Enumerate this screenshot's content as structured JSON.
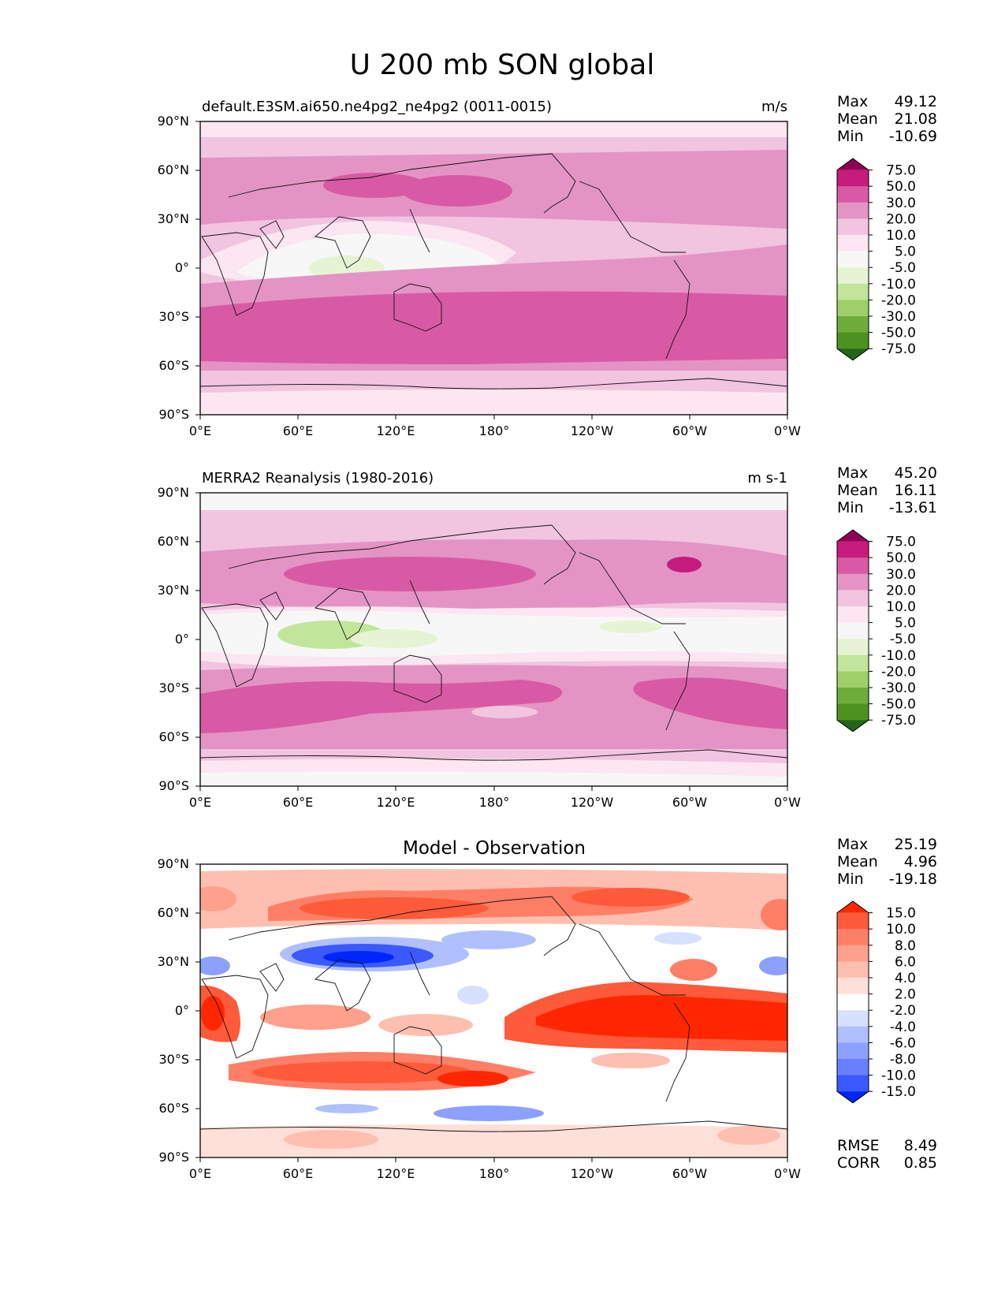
{
  "figure": {
    "title": "U 200 mb SON global"
  },
  "axes": {
    "xticks": [
      "0°E",
      "60°E",
      "120°E",
      "180°",
      "120°W",
      "60°W",
      "0°W"
    ],
    "yticks": [
      "90°N",
      "60°N",
      "30°N",
      "0°",
      "30°S",
      "60°S",
      "90°S"
    ]
  },
  "chart_data": [
    {
      "type": "heatmap",
      "panel": "model",
      "title_left": "default.E3SM.ai650.ne4pg2_ne4pg2 (0011-0015)",
      "units": "m/s",
      "xlim": [
        0,
        360
      ],
      "ylim": [
        -90,
        90
      ],
      "stats": {
        "labels": [
          "Max",
          "Mean",
          "Min"
        ],
        "values": [
          "49.12",
          "21.08",
          "-10.69"
        ]
      },
      "colorbar": {
        "levels": [
          "75.0",
          "50.0",
          "30.0",
          "20.0",
          "10.0",
          "5.0",
          "-5.0",
          "-10.0",
          "-20.0",
          "-30.0",
          "-50.0",
          "-75.0"
        ],
        "colors": [
          "#8e0152",
          "#c51b7d",
          "#d95aa4",
          "#e494c4",
          "#f1c4e0",
          "#fbe6f1",
          "#f7f7f7",
          "#e6f4d4",
          "#c2e59c",
          "#9ed06a",
          "#6eac3c",
          "#4d9221",
          "#276419"
        ]
      },
      "field": {
        "peak_jet_south": 49.12,
        "mean": 21.08,
        "min_equatorial": -10.69
      }
    },
    {
      "type": "heatmap",
      "panel": "observation",
      "title_left": "MERRA2 Reanalysis (1980-2016)",
      "units": "m s-1",
      "xlim": [
        0,
        360
      ],
      "ylim": [
        -90,
        90
      ],
      "stats": {
        "labels": [
          "Max",
          "Mean",
          "Min"
        ],
        "values": [
          "45.20",
          "16.11",
          "-13.61"
        ]
      },
      "colorbar": {
        "levels": [
          "75.0",
          "50.0",
          "30.0",
          "20.0",
          "10.0",
          "5.0",
          "-5.0",
          "-10.0",
          "-20.0",
          "-30.0",
          "-50.0",
          "-75.0"
        ],
        "colors": [
          "#8e0152",
          "#c51b7d",
          "#d95aa4",
          "#e494c4",
          "#f1c4e0",
          "#fbe6f1",
          "#f7f7f7",
          "#e6f4d4",
          "#c2e59c",
          "#9ed06a",
          "#6eac3c",
          "#4d9221",
          "#276419"
        ]
      },
      "field": {
        "peak_jet_north": 45.2,
        "mean": 16.11,
        "min_equatorial": -13.61
      }
    },
    {
      "type": "heatmap",
      "panel": "difference",
      "title_center": "Model - Observation",
      "xlim": [
        0,
        360
      ],
      "ylim": [
        -90,
        90
      ],
      "stats": {
        "labels": [
          "Max",
          "Mean",
          "Min"
        ],
        "values": [
          "25.19",
          "4.96",
          "-19.18"
        ]
      },
      "extra_stats": {
        "labels": [
          "RMSE",
          "CORR"
        ],
        "values": [
          "8.49",
          "0.85"
        ]
      },
      "colorbar": {
        "levels": [
          "15.0",
          "10.0",
          "8.0",
          "6.0",
          "4.0",
          "2.0",
          "-2.0",
          "-4.0",
          "-6.0",
          "-8.0",
          "-10.0",
          "-15.0"
        ],
        "colors": [
          "#ff2600",
          "#ff5a3a",
          "#ff7f66",
          "#ffa08c",
          "#ffbfb0",
          "#ffe0d8",
          "#ffffff",
          "#d8e0ff",
          "#b0c0ff",
          "#8ca0ff",
          "#6680ff",
          "#3a5aff",
          "#0026ff"
        ]
      }
    }
  ]
}
